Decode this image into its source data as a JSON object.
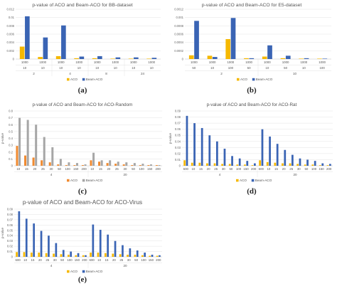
{
  "chart_data": [
    {
      "id": "a",
      "type": "bar",
      "panel_label": "(a)",
      "title": "p-value of ACO and Beam-ACO for BB-dataset",
      "ylabel": "",
      "ylim": [
        0,
        0.012
      ],
      "yticks": [
        "0",
        "0.002",
        "0.004",
        "0.006",
        "0.008",
        "0.01",
        "0.012"
      ],
      "tick_values": [
        0,
        0.002,
        0.004,
        0.006,
        0.008,
        0.01,
        0.012
      ],
      "grid": true,
      "legend_position": "bottom",
      "levels": [
        [
          "1000",
          "1000",
          "1000",
          "1000",
          "1000",
          "1000",
          "1000",
          "1000"
        ],
        [
          "10",
          "10",
          "10",
          "10",
          "10",
          "10",
          "10",
          "10"
        ],
        [
          "2",
          "4",
          "8",
          "24"
        ]
      ],
      "group_spans": [
        2,
        2,
        2,
        2
      ],
      "series": [
        {
          "name": "ACO",
          "color": "#f5b800",
          "values": [
            0.003,
            0.0005,
            0.0007,
            0.0002,
            0.0002,
            0.0001,
            0.0001,
            0.0001
          ]
        },
        {
          "name": "Beam-ACO",
          "color": "#3a64b4",
          "values": [
            0.0103,
            0.0052,
            0.0081,
            0.0006,
            0.0007,
            0.0004,
            0.0004,
            0.0003
          ]
        }
      ]
    },
    {
      "id": "b",
      "type": "bar",
      "panel_label": "(b)",
      "title": "p-value of ACO and Beam-ACO for E5-dataset",
      "ylabel": "",
      "ylim": [
        0,
        0.0012
      ],
      "yticks": [
        "0",
        "0.0002",
        "0.0004",
        "0.0006",
        "0.0008",
        "0.001",
        "0.0012"
      ],
      "tick_values": [
        0,
        0.0002,
        0.0004,
        0.0006,
        0.0008,
        0.001,
        0.0012
      ],
      "grid": true,
      "legend_position": "bottom",
      "levels": [
        [
          "1000",
          "1000",
          "1000",
          "1000",
          "1000",
          "1000",
          "1000",
          "1000"
        ],
        [
          "50",
          "10",
          "100",
          "50",
          "10",
          "50",
          "10",
          "100"
        ],
        [
          "2",
          "10"
        ]
      ],
      "group_spans": [
        4,
        4
      ],
      "series": [
        {
          "name": "ACO",
          "color": "#f5b800",
          "values": [
            9e-05,
            8e-05,
            0.00048,
            2e-05,
            6e-05,
            2e-05,
            1e-05,
            1e-05
          ]
        },
        {
          "name": "Beam-ACO",
          "color": "#3a64b4",
          "values": [
            0.00092,
            5e-05,
            0.00099,
            2e-05,
            0.00033,
            8e-05,
            2e-05,
            1e-05
          ]
        }
      ]
    },
    {
      "id": "c",
      "type": "bar",
      "panel_label": "(c)",
      "title": "p-value of ACO and Beam-ACO for ACO-Random",
      "ylabel": "p-value",
      "ylim": [
        0,
        0.8
      ],
      "yticks": [
        "0",
        "0.1",
        "0.2",
        "0.3",
        "0.4",
        "0.5",
        "0.6",
        "0.7",
        "0.8"
      ],
      "tick_values": [
        0,
        0.1,
        0.2,
        0.3,
        0.4,
        0.5,
        0.6,
        0.7,
        0.8
      ],
      "grid": true,
      "legend_position": "bottom",
      "levels": [
        [
          "10",
          "15",
          "20",
          "25",
          "30",
          "50",
          "100",
          "150",
          "200",
          "10",
          "15",
          "20",
          "25",
          "30",
          "50",
          "100",
          "150",
          "200"
        ],
        [
          "4",
          "20"
        ]
      ],
      "group_spans": [
        9,
        9
      ],
      "series": [
        {
          "name": "ACO",
          "color": "#f08a30",
          "values": [
            0.29,
            0.15,
            0.12,
            0.08,
            0.05,
            0.02,
            0.01,
            0.01,
            0.01,
            0.08,
            0.06,
            0.04,
            0.03,
            0.02,
            0.01,
            0.01,
            0.01,
            0.01
          ]
        },
        {
          "name": "Beam-ACO",
          "color": "#a6a6a6",
          "values": [
            0.7,
            0.67,
            0.6,
            0.42,
            0.27,
            0.1,
            0.05,
            0.04,
            0.02,
            0.19,
            0.08,
            0.08,
            0.06,
            0.05,
            0.04,
            0.03,
            0.02,
            0.01
          ]
        }
      ]
    },
    {
      "id": "d",
      "type": "bar",
      "panel_label": "(d)",
      "title": "p-value of ACO and Beam-ACO for ACO-Rat",
      "ylabel": "p-value",
      "ylim": [
        0,
        0.09
      ],
      "yticks": [
        "0",
        "0.01",
        "0.02",
        "0.03",
        "0.04",
        "0.05",
        "0.06",
        "0.07",
        "0.08",
        "0.09"
      ],
      "tick_values": [
        0,
        0.01,
        0.02,
        0.03,
        0.04,
        0.05,
        0.06,
        0.07,
        0.08,
        0.09
      ],
      "grid": true,
      "legend_position": "bottom",
      "levels": [
        [
          "600",
          "10",
          "15",
          "20",
          "25",
          "30",
          "50",
          "100",
          "150",
          "200",
          "600",
          "10",
          "15",
          "20",
          "25",
          "30",
          "50",
          "100",
          "150",
          "200"
        ],
        [
          "4",
          "20"
        ]
      ],
      "group_spans": [
        10,
        10
      ],
      "series": [
        {
          "name": "ACO",
          "color": "#f5b800",
          "values": [
            0.009,
            0.005,
            0.005,
            0.004,
            0.004,
            0.003,
            0.003,
            0.002,
            0.002,
            0.001,
            0.009,
            0.006,
            0.005,
            0.004,
            0.004,
            0.003,
            0.002,
            0.002,
            0.001,
            0.001
          ]
        },
        {
          "name": "Beam-ACO",
          "color": "#3a64b4",
          "values": [
            0.082,
            0.07,
            0.062,
            0.05,
            0.04,
            0.028,
            0.016,
            0.012,
            0.008,
            0.004,
            0.06,
            0.048,
            0.036,
            0.026,
            0.018,
            0.012,
            0.01,
            0.008,
            0.004,
            0.003
          ]
        }
      ]
    },
    {
      "id": "e",
      "type": "bar",
      "panel_label": "(e)",
      "title": "p-value of ACO and Beam-ACO for ACO-Virus",
      "ylabel": "p-value",
      "ylim": [
        0,
        0.09
      ],
      "yticks": [
        "0",
        "0.01",
        "0.02",
        "0.03",
        "0.04",
        "0.05",
        "0.06",
        "0.07",
        "0.08",
        "0.09"
      ],
      "tick_values": [
        0,
        0.01,
        0.02,
        0.03,
        0.04,
        0.05,
        0.06,
        0.07,
        0.08,
        0.09
      ],
      "grid": true,
      "legend_position": "bottom",
      "levels": [
        [
          "600",
          "10",
          "15",
          "20",
          "25",
          "30",
          "50",
          "100",
          "150",
          "200",
          "600",
          "10",
          "15",
          "20",
          "25",
          "30",
          "50",
          "100",
          "150",
          "200"
        ],
        [
          "4",
          "20"
        ]
      ],
      "group_spans": [
        10,
        10
      ],
      "series": [
        {
          "name": "ACO",
          "color": "#f5b800",
          "values": [
            0.009,
            0.009,
            0.008,
            0.008,
            0.007,
            0.006,
            0.005,
            0.004,
            0.003,
            0.003,
            0.008,
            0.008,
            0.007,
            0.006,
            0.005,
            0.004,
            0.004,
            0.003,
            0.002,
            0.002
          ]
        },
        {
          "name": "Beam-ACO",
          "color": "#3a64b4",
          "values": [
            0.086,
            0.072,
            0.063,
            0.049,
            0.04,
            0.026,
            0.013,
            0.01,
            0.007,
            0.003,
            0.061,
            0.051,
            0.042,
            0.03,
            0.022,
            0.016,
            0.012,
            0.008,
            0.004,
            0.003
          ]
        }
      ]
    }
  ]
}
